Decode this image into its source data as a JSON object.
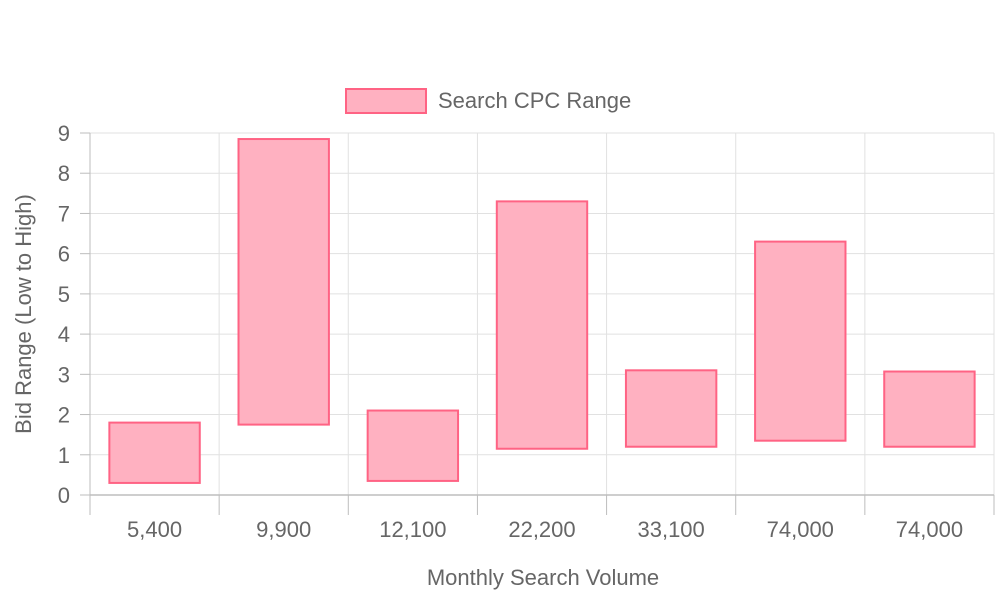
{
  "chart_data": {
    "type": "bar",
    "subtype": "floating-range",
    "categories": [
      "5,400",
      "9,900",
      "12,100",
      "22,200",
      "33,100",
      "74,000",
      "74,000"
    ],
    "series": [
      {
        "name": "Search CPC Range",
        "ranges": [
          [
            0.3,
            1.8
          ],
          [
            1.75,
            8.85
          ],
          [
            0.35,
            2.1
          ],
          [
            1.15,
            7.3
          ],
          [
            1.2,
            3.1
          ],
          [
            1.35,
            6.3
          ],
          [
            1.2,
            3.07
          ]
        ],
        "fill": "#ffb1c1",
        "stroke": "#ff6384"
      }
    ],
    "xlabel": "Monthly Search Volume",
    "ylabel": "Bid Range (Low to High)",
    "ylim": [
      0,
      9
    ],
    "yticks": [
      "0",
      "1",
      "2",
      "3",
      "4",
      "5",
      "6",
      "7",
      "8",
      "9"
    ],
    "grid": true,
    "legend": "top"
  }
}
